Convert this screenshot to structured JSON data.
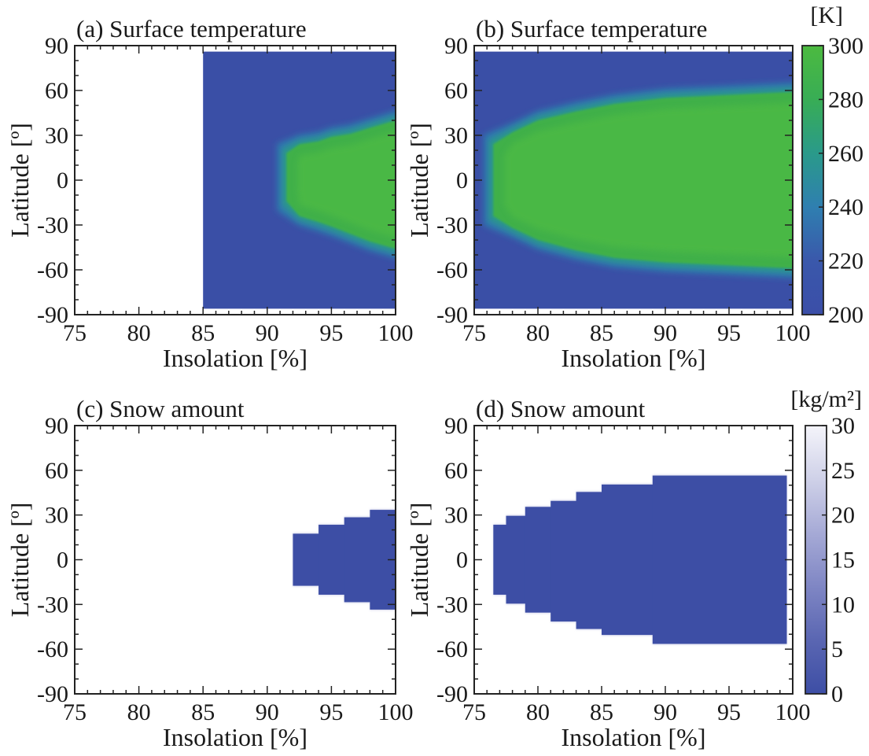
{
  "chart_data": [
    {
      "type": "heatmap",
      "title": "(a) Surface temperature",
      "xlabel": "Insolation [%]",
      "ylabel": "Latitude [º]",
      "xlim": [
        75,
        100
      ],
      "ylim": [
        -90,
        90
      ],
      "xticks": [
        "75",
        "80",
        "85",
        "90",
        "95",
        "100"
      ],
      "yticks": [
        "90",
        "60",
        "30",
        "0",
        "-30",
        "-60",
        "-90"
      ],
      "field": "temp",
      "x_data_range": [
        85,
        100
      ],
      "warm_region_edge": [
        {
          "x": 91.5,
          "lat_top": 18,
          "lat_bottom": -14
        },
        {
          "x": 92.5,
          "lat_top": 24,
          "lat_bottom": -24
        },
        {
          "x": 94,
          "lat_top": 26,
          "lat_bottom": -28
        },
        {
          "x": 95,
          "lat_top": 29,
          "lat_bottom": -31
        },
        {
          "x": 96.5,
          "lat_top": 31,
          "lat_bottom": -36
        },
        {
          "x": 98,
          "lat_top": 35,
          "lat_bottom": -41
        },
        {
          "x": 100,
          "lat_top": 40,
          "lat_bottom": -46
        }
      ],
      "value_range": [
        200,
        290
      ]
    },
    {
      "type": "heatmap",
      "title": "(b) Surface temperature",
      "xlabel": "Insolation [%]",
      "ylabel": "Latitude [º]",
      "xlim": [
        75,
        100
      ],
      "ylim": [
        -90,
        90
      ],
      "xticks": [
        "75",
        "80",
        "85",
        "90",
        "95",
        "100"
      ],
      "yticks": [
        "90",
        "60",
        "30",
        "0",
        "-30",
        "-60",
        "-90"
      ],
      "field": "temp",
      "x_data_range": [
        75,
        100
      ],
      "warm_region_edge": [
        {
          "x": 76.5,
          "lat_top": 24,
          "lat_bottom": -24
        },
        {
          "x": 78,
          "lat_top": 32,
          "lat_bottom": -32
        },
        {
          "x": 80,
          "lat_top": 40,
          "lat_bottom": -40
        },
        {
          "x": 83,
          "lat_top": 46,
          "lat_bottom": -47
        },
        {
          "x": 86,
          "lat_top": 51,
          "lat_bottom": -52
        },
        {
          "x": 90,
          "lat_top": 55,
          "lat_bottom": -55
        },
        {
          "x": 95,
          "lat_top": 57,
          "lat_bottom": -57
        },
        {
          "x": 100,
          "lat_top": 59,
          "lat_bottom": -59
        }
      ],
      "value_range": [
        200,
        290
      ]
    },
    {
      "type": "heatmap",
      "title": "(c) Snow amount",
      "xlabel": "Insolation [%]",
      "ylabel": "Latitude [º]",
      "xlim": [
        75,
        100
      ],
      "ylim": [
        -90,
        90
      ],
      "xticks": [
        "75",
        "80",
        "85",
        "90",
        "95",
        "100"
      ],
      "yticks": [
        "90",
        "60",
        "30",
        "0",
        "-30",
        "-60",
        "-90"
      ],
      "field": "snow",
      "low_snow_region": [
        {
          "x0": 92,
          "x1": 94,
          "lat_top": 18,
          "lat_bottom": -18
        },
        {
          "x0": 94,
          "x1": 96,
          "lat_top": 24,
          "lat_bottom": -24
        },
        {
          "x0": 96,
          "x1": 98,
          "lat_top": 29,
          "lat_bottom": -29
        },
        {
          "x0": 98,
          "x1": 100,
          "lat_top": 34,
          "lat_bottom": -34
        }
      ],
      "value_range": [
        0,
        30
      ]
    },
    {
      "type": "heatmap",
      "title": "(d) Snow amount",
      "xlabel": "Insolation [%]",
      "ylabel": "Latitude [º]",
      "xlim": [
        75,
        100
      ],
      "ylim": [
        -90,
        90
      ],
      "xticks": [
        "75",
        "80",
        "85",
        "90",
        "95",
        "100"
      ],
      "yticks": [
        "90",
        "60",
        "30",
        "0",
        "-30",
        "-60",
        "-90"
      ],
      "field": "snow",
      "low_snow_region": [
        {
          "x0": 76.5,
          "x1": 77.5,
          "lat_top": 24,
          "lat_bottom": -24
        },
        {
          "x0": 77.5,
          "x1": 79,
          "lat_top": 30,
          "lat_bottom": -30
        },
        {
          "x0": 79,
          "x1": 81,
          "lat_top": 36,
          "lat_bottom": -36
        },
        {
          "x0": 81,
          "x1": 83,
          "lat_top": 40,
          "lat_bottom": -42
        },
        {
          "x0": 83,
          "x1": 85,
          "lat_top": 46,
          "lat_bottom": -47
        },
        {
          "x0": 85,
          "x1": 89,
          "lat_top": 51,
          "lat_bottom": -51
        },
        {
          "x0": 89,
          "x1": 99.5,
          "lat_top": 57,
          "lat_bottom": -57
        }
      ],
      "value_range": [
        0,
        30
      ]
    }
  ],
  "colorbars": {
    "temperature": {
      "unit": "[K]",
      "min": 200,
      "max": 300,
      "ticks": [
        "300",
        "280",
        "260",
        "240",
        "220",
        "200"
      ],
      "colors": [
        "#3b4ea8",
        "#3a58ab",
        "#2f7fb0",
        "#2a9a8a",
        "#38ad55",
        "#4cba40"
      ]
    },
    "snow": {
      "unit": "[kg/m²]",
      "min": 0,
      "max": 30,
      "ticks": [
        "30",
        "25",
        "20",
        "15",
        "10",
        "5",
        "0"
      ],
      "colors": [
        "#3d4ea5",
        "#5a66b2",
        "#7f86c4",
        "#a6aad6",
        "#cfd1e8",
        "#f4f4fa"
      ]
    }
  }
}
